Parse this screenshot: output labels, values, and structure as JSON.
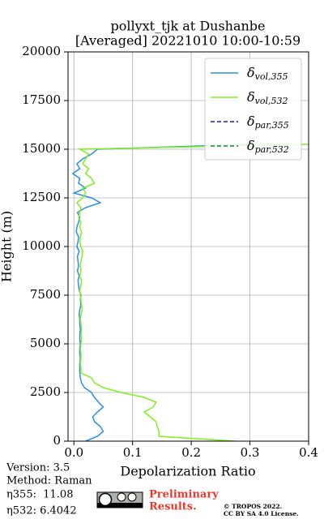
{
  "chart_data": {
    "type": "line",
    "title": [
      "pollyxt_tjk at Dushanbe",
      "[Averaged] 20221010 10:00-10:59"
    ],
    "xlabel": "Depolarization Ratio",
    "ylabel": "Height (m)",
    "xlim": [
      -0.01,
      0.4
    ],
    "xticks": [
      {
        "value": 0,
        "label": "0.0"
      },
      0.1,
      0.2,
      0.3,
      0.4
    ],
    "ylim": [
      0,
      20000
    ],
    "yticks": [
      0,
      2500,
      5000,
      7500,
      10000,
      12500,
      15000,
      17500,
      20000
    ],
    "grid": true,
    "legend": "upper right",
    "y": [
      0,
      250,
      500,
      750,
      1000,
      1250,
      1500,
      1750,
      2000,
      2250,
      2500,
      2750,
      3000,
      3250,
      3500,
      3750,
      4000,
      4250,
      4500,
      4750,
      5000,
      5250,
      5500,
      5750,
      6000,
      6250,
      6500,
      6750,
      7000,
      7250,
      7500,
      7750,
      8000,
      8250,
      8500,
      8750,
      9000,
      9250,
      9500,
      9750,
      10000,
      10250,
      10500,
      10750,
      11000,
      11250,
      11500,
      11750,
      12000,
      12250,
      12500,
      12750,
      13000,
      13250,
      13500,
      13750,
      14000,
      14250,
      14500,
      14750,
      15000,
      15250
    ],
    "series": [
      {
        "name": "δ",
        "subscript": "vol,355",
        "color": "#2a8fe8",
        "linestyle": "solid",
        "values": [
          0.02,
          0.04,
          0.05,
          0.045,
          0.035,
          0.032,
          0.04,
          0.05,
          0.042,
          0.035,
          0.03,
          0.018,
          0.013,
          0.011,
          0.01,
          0.01,
          0.01,
          0.011,
          0.01,
          0.01,
          0.011,
          0.01,
          0.01,
          0.011,
          0.01,
          0.01,
          0.009,
          0.01,
          0.012,
          0.011,
          0.012,
          0.009,
          0.008,
          0.007,
          0.009,
          0.006,
          0.008,
          0.007,
          0.006,
          0.009,
          0.005,
          0.007,
          0.008,
          0.004,
          0.005,
          0.008,
          0.01,
          0.006,
          0.02,
          0.045,
          0.03,
          0.0,
          0.02,
          0.008,
          0.01,
          -0.002,
          0.01,
          0.005,
          0.015,
          0.03,
          0.04,
          0.3
        ]
      },
      {
        "name": "δ",
        "subscript": "vol,532",
        "color": "#80f020",
        "linestyle": "solid",
        "values": [
          0.275,
          0.145,
          0.145,
          0.142,
          0.14,
          0.13,
          0.12,
          0.135,
          0.14,
          0.12,
          0.08,
          0.05,
          0.035,
          0.03,
          0.012,
          0.012,
          0.011,
          0.012,
          0.012,
          0.011,
          0.012,
          0.013,
          0.012,
          0.013,
          0.012,
          0.011,
          0.012,
          0.014,
          0.013,
          0.012,
          0.011,
          0.01,
          0.012,
          0.013,
          0.01,
          0.012,
          0.011,
          0.012,
          0.014,
          0.015,
          0.012,
          0.01,
          0.011,
          0.013,
          0.01,
          0.012,
          0.008,
          0.01,
          0.012,
          0.005,
          0.015,
          0.02,
          0.015,
          0.035,
          0.03,
          0.02,
          0.025,
          0.015,
          0.02,
          0.025,
          0.01,
          0.4
        ]
      },
      {
        "name": "δ",
        "subscript": "par,355",
        "color": "#1a1ab8",
        "linestyle": "dashed",
        "values": [
          null,
          null,
          null,
          null,
          null,
          null,
          null,
          null,
          null,
          null,
          null,
          null,
          null,
          null,
          null,
          null,
          null,
          null,
          null,
          null,
          null,
          null,
          null,
          null,
          null,
          null,
          null,
          null,
          null,
          null,
          null,
          null,
          null,
          null,
          null,
          null,
          null,
          null,
          null,
          null,
          null,
          null,
          null,
          null,
          null,
          null,
          null,
          null,
          null,
          null,
          null,
          null,
          null,
          null,
          null,
          null,
          null,
          null,
          null,
          null,
          null,
          null
        ]
      },
      {
        "name": "δ",
        "subscript": "par,532",
        "color": "#1a8a2a",
        "linestyle": "dashed",
        "values": [
          null,
          null,
          null,
          null,
          null,
          null,
          null,
          null,
          null,
          null,
          null,
          null,
          null,
          null,
          null,
          null,
          null,
          null,
          null,
          null,
          null,
          null,
          null,
          null,
          null,
          null,
          null,
          null,
          null,
          null,
          null,
          null,
          null,
          null,
          null,
          null,
          null,
          null,
          null,
          null,
          null,
          null,
          null,
          null,
          null,
          null,
          null,
          null,
          null,
          null,
          null,
          null,
          null,
          null,
          null,
          null,
          null,
          null,
          null,
          null,
          null,
          null
        ]
      }
    ],
    "info": [
      "Version: 3.5",
      "Method: Raman",
      "η355:  11.08",
      "η532: 6.4042"
    ],
    "notice": [
      "Preliminary",
      "Results."
    ],
    "copyright": [
      "© TROPOS 2022.",
      "CC BY SA 4.0 License."
    ]
  }
}
